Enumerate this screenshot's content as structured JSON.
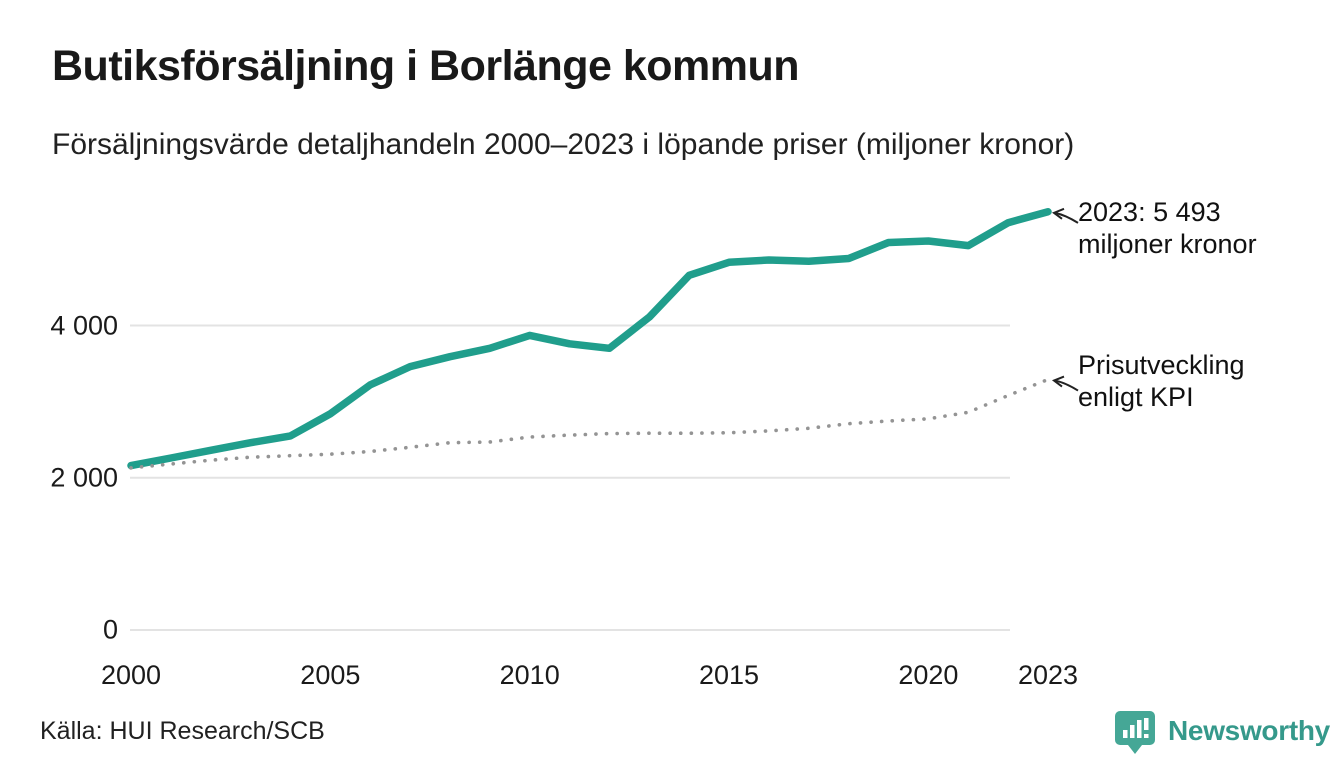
{
  "header": {
    "title": "Butiksförsäljning i Borlänge kommun",
    "subtitle": "Försäljningsvärde detaljhandeln 2000–2023 i löpande priser (miljoner kronor)"
  },
  "chart_data": {
    "type": "line",
    "title": "Butiksförsäljning i Borlänge kommun",
    "subtitle": "Försäljningsvärde detaljhandeln 2000–2023 i löpande priser (miljoner kronor)",
    "xlabel": "",
    "ylabel": "miljoner kronor",
    "x": [
      2000,
      2001,
      2002,
      2003,
      2004,
      2005,
      2006,
      2007,
      2008,
      2009,
      2010,
      2011,
      2012,
      2013,
      2014,
      2015,
      2016,
      2017,
      2018,
      2019,
      2020,
      2021,
      2022,
      2023
    ],
    "series": [
      {
        "name": "Butiksförsäljning (löpande priser)",
        "data_name": "sales-line",
        "style": "solid",
        "color": "#209e8c",
        "values": [
          2160,
          2260,
          2360,
          2460,
          2550,
          2840,
          3220,
          3460,
          3590,
          3700,
          3870,
          3760,
          3700,
          4110,
          4660,
          4830,
          4860,
          4845,
          4880,
          5090,
          5110,
          5050,
          5350,
          5493
        ]
      },
      {
        "name": "Prisutveckling enligt KPI",
        "data_name": "kpi-line",
        "style": "dotted",
        "color": "#949494",
        "values": [
          2130,
          2180,
          2230,
          2270,
          2290,
          2310,
          2345,
          2400,
          2460,
          2470,
          2535,
          2560,
          2580,
          2585,
          2585,
          2590,
          2615,
          2650,
          2710,
          2745,
          2775,
          2860,
          3080,
          3290
        ]
      }
    ],
    "ylim": [
      0,
      5600
    ],
    "xlim": [
      2000,
      2023
    ],
    "grid": "horizontal",
    "grid_color": "#e3e3e3",
    "legend_position": "annotated-on-chart",
    "yticks": [
      {
        "value": 0,
        "label": "0"
      },
      {
        "value": 2000,
        "label": "2 000"
      },
      {
        "value": 4000,
        "label": "4 000"
      }
    ],
    "xticks": [
      {
        "value": 2000,
        "label": "2000"
      },
      {
        "value": 2005,
        "label": "2005"
      },
      {
        "value": 2010,
        "label": "2010"
      },
      {
        "value": 2015,
        "label": "2015"
      },
      {
        "value": 2020,
        "label": "2020"
      },
      {
        "value": 2023,
        "label": "2023"
      }
    ],
    "annotations": [
      {
        "lines": [
          "2023: 5 493",
          "miljoner kronor"
        ],
        "target_year": 2023,
        "target_value": 5493
      },
      {
        "lines": [
          "Prisutveckling",
          "enligt KPI"
        ],
        "target_year": 2023,
        "target_value": 3290
      }
    ]
  },
  "footer": {
    "source": "Källa: HUI Research/SCB",
    "brand": "Newsworthy",
    "brand_color": "#35998b",
    "logo_icon": "bar-chart-speech-bubble-icon"
  }
}
